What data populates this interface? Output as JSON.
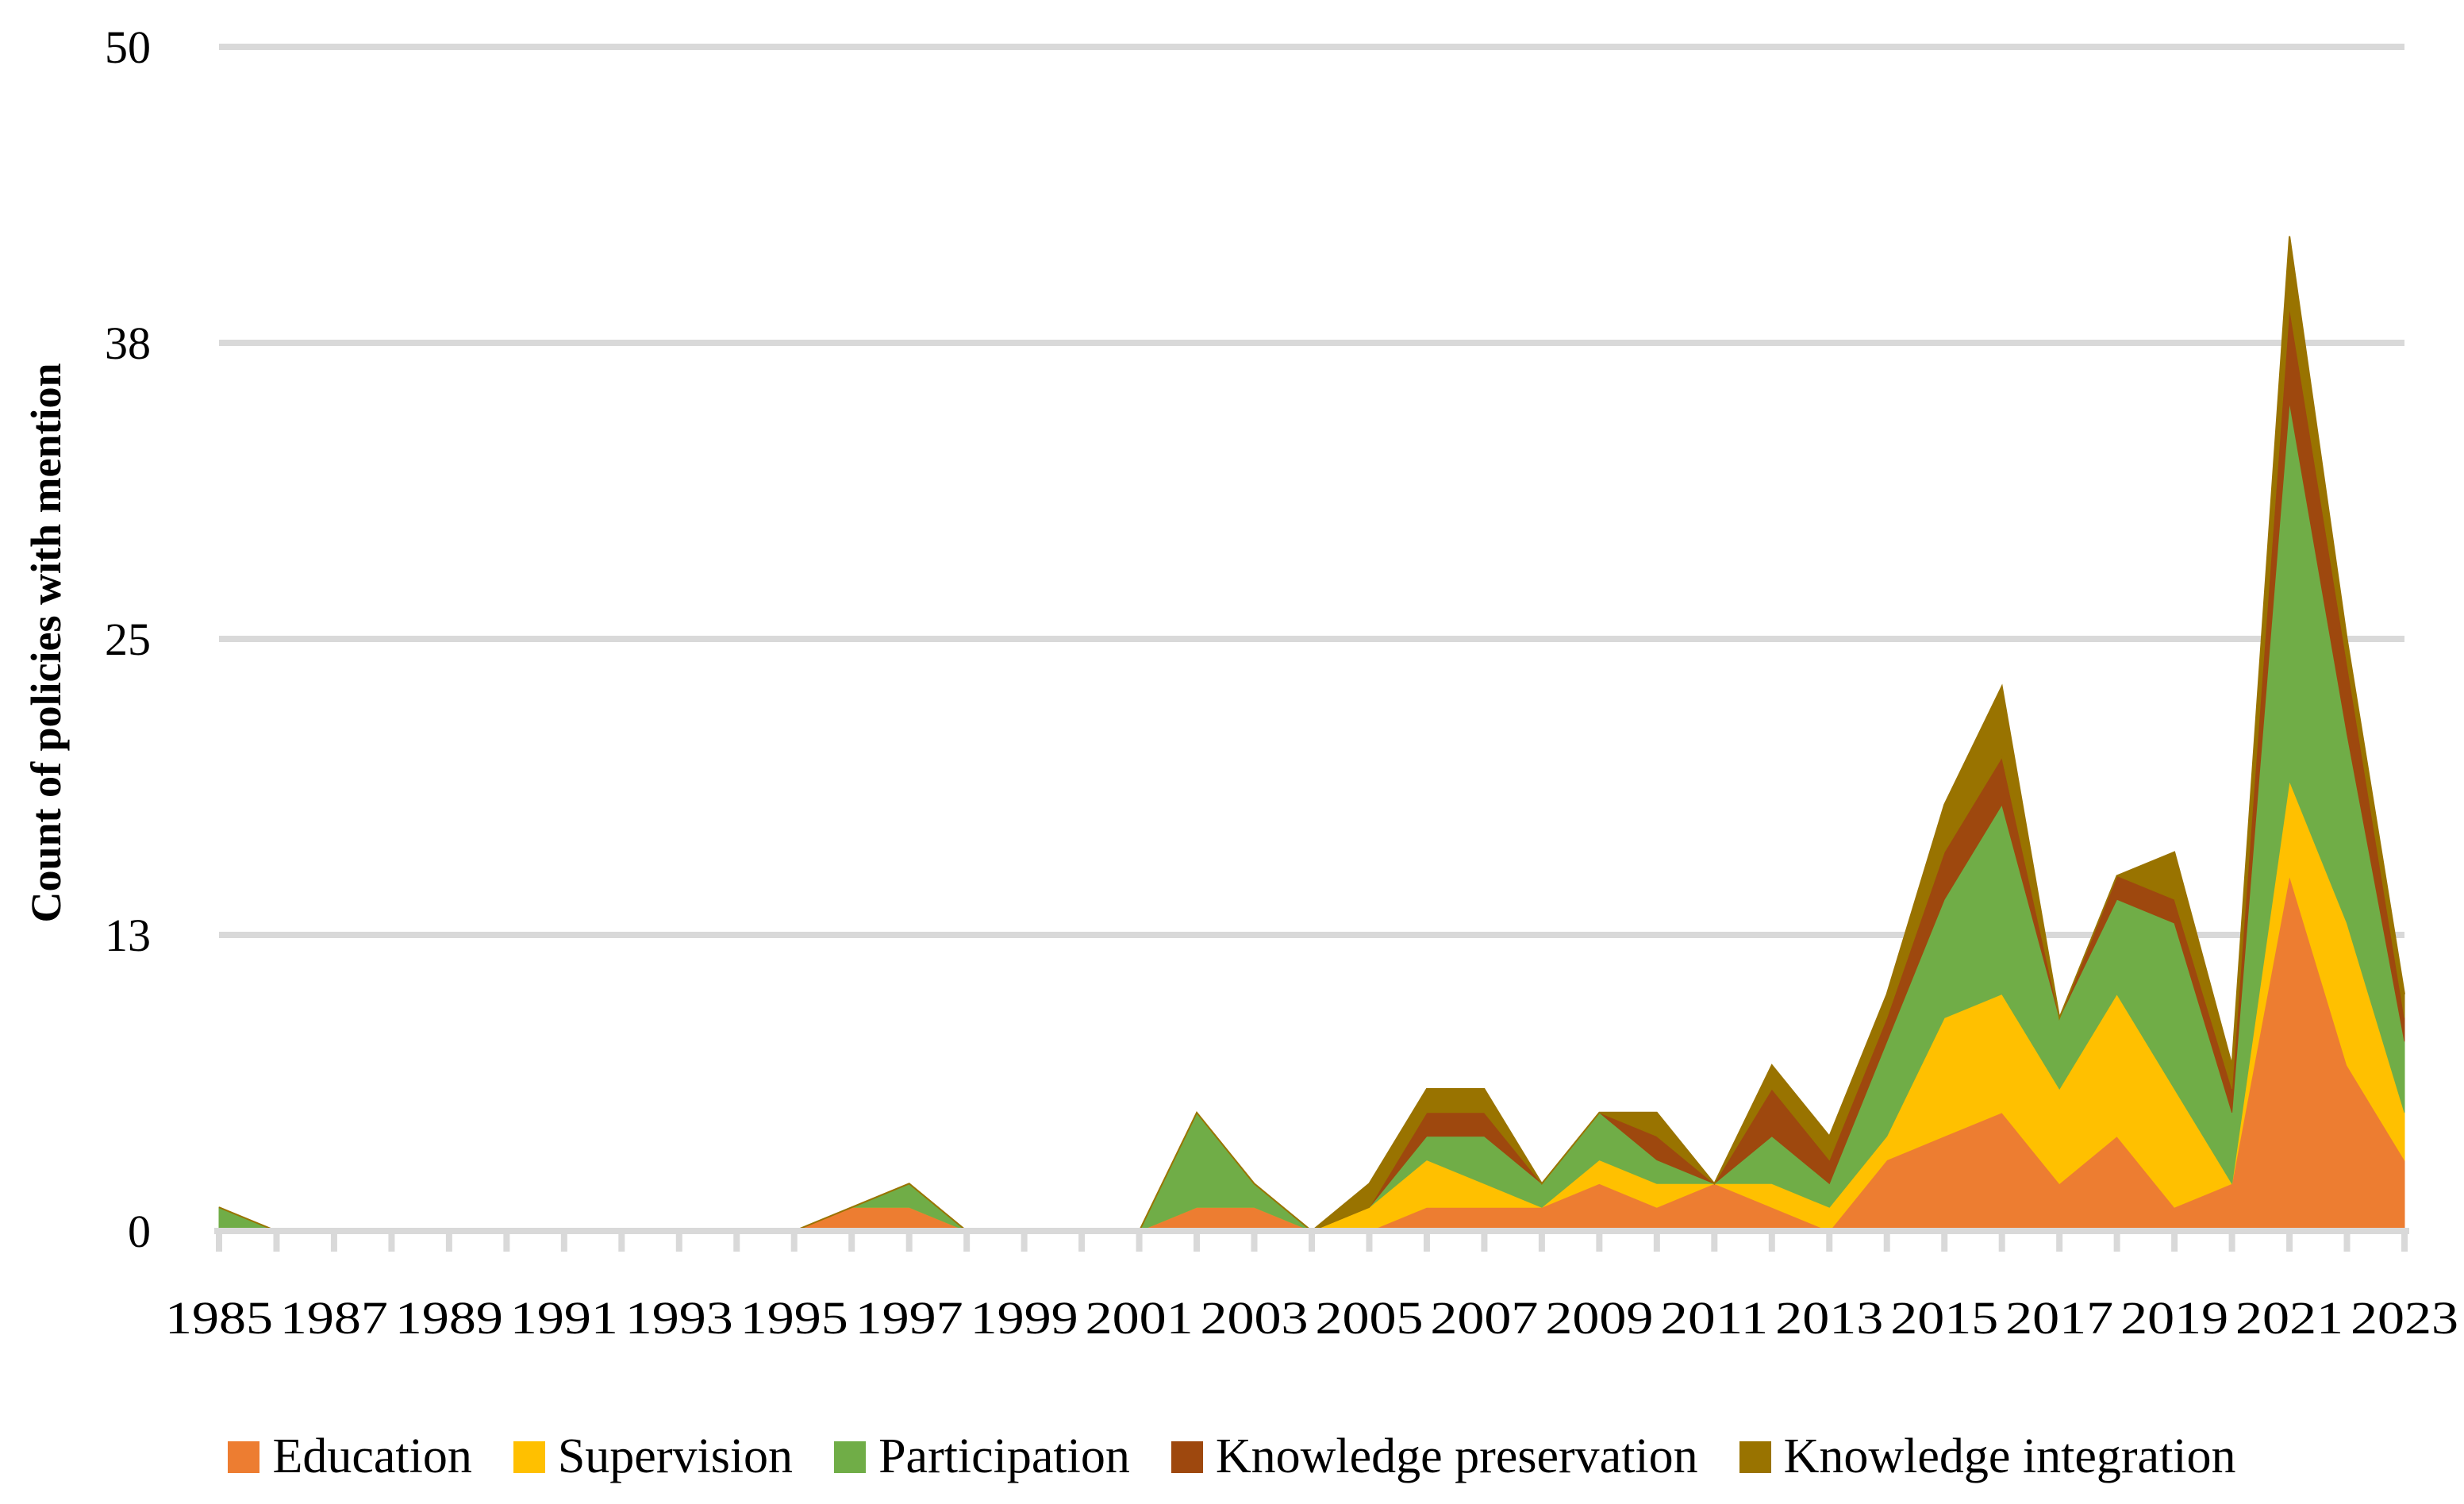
{
  "chart_data": {
    "type": "area",
    "stacked": true,
    "title": "",
    "xlabel": "",
    "ylabel": "Count of policies with mention",
    "ylim": [
      0,
      50
    ],
    "yticks": [
      0,
      12.5,
      25,
      37.5,
      50
    ],
    "ytick_labels": [
      "0",
      "13",
      "25",
      "38",
      "50"
    ],
    "grid": true,
    "legend_position": "bottom",
    "x": [
      1985,
      1986,
      1987,
      1988,
      1989,
      1990,
      1991,
      1992,
      1993,
      1994,
      1995,
      1996,
      1997,
      1998,
      1999,
      2000,
      2001,
      2002,
      2003,
      2004,
      2005,
      2006,
      2007,
      2008,
      2009,
      2010,
      2011,
      2012,
      2013,
      2014,
      2015,
      2016,
      2017,
      2018,
      2019,
      2020,
      2021,
      2022,
      2023
    ],
    "xtick_labels": [
      "1985",
      "1987",
      "1989",
      "1991",
      "1993",
      "1995",
      "1997",
      "1999",
      "2001",
      "2003",
      "2005",
      "2007",
      "2009",
      "2011",
      "2013",
      "2015",
      "2017",
      "2019",
      "2021",
      "2023"
    ],
    "series": [
      {
        "name": "Education",
        "color": "#ED7D31",
        "values": [
          0,
          0,
          0,
          0,
          0,
          0,
          0,
          0,
          0,
          0,
          0,
          1,
          1,
          0,
          0,
          0,
          0,
          1,
          1,
          0,
          0,
          1,
          1,
          1,
          2,
          1,
          2,
          1,
          0,
          3,
          4,
          5,
          2,
          4,
          1,
          2,
          15,
          7,
          3
        ]
      },
      {
        "name": "Supervision",
        "color": "#FFC000",
        "values": [
          0,
          0,
          0,
          0,
          0,
          0,
          0,
          0,
          0,
          0,
          0,
          0,
          0,
          0,
          0,
          0,
          0,
          0,
          0,
          0,
          1,
          2,
          1,
          0,
          1,
          1,
          0,
          1,
          1,
          1,
          5,
          5,
          4,
          6,
          5,
          0,
          4,
          6,
          2
        ]
      },
      {
        "name": "Participation",
        "color": "#70AD47",
        "values": [
          1,
          0,
          0,
          0,
          0,
          0,
          0,
          0,
          0,
          0,
          0,
          0,
          1,
          0,
          0,
          0,
          0,
          4,
          1,
          0,
          0,
          1,
          2,
          1,
          2,
          1,
          0,
          2,
          1,
          4,
          5,
          8,
          3,
          4,
          7,
          3,
          16,
          8,
          3
        ]
      },
      {
        "name": "Knowledge preservation",
        "color": "#9E480E",
        "values": [
          0,
          0,
          0,
          0,
          0,
          0,
          0,
          0,
          0,
          0,
          0,
          0,
          0,
          0,
          0,
          0,
          0,
          0,
          0,
          0,
          0,
          1,
          1,
          0,
          0,
          1,
          0,
          2,
          1,
          1,
          2,
          2,
          0,
          1,
          1,
          1,
          4,
          3,
          1
        ]
      },
      {
        "name": "Knowledge integration",
        "color": "#997300",
        "values": [
          0,
          0,
          0,
          0,
          0,
          0,
          0,
          0,
          0,
          0,
          0,
          0,
          0,
          0,
          0,
          0,
          0,
          0,
          0,
          0,
          1,
          1,
          1,
          0,
          0,
          1,
          0,
          1,
          1,
          1,
          2,
          3,
          0,
          0,
          2,
          1,
          3,
          1,
          1
        ]
      }
    ]
  },
  "colors": {
    "gridline": "#D9D9D9",
    "axis": "#D9D9D9",
    "text": "#000000"
  }
}
